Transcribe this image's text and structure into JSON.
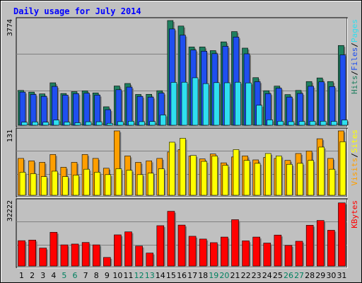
{
  "chart_data": {
    "type": "bar",
    "title": "Daily usage for July 2014",
    "categories": [
      "1",
      "2",
      "3",
      "4",
      "5",
      "6",
      "7",
      "8",
      "9",
      "10",
      "11",
      "12",
      "13",
      "14",
      "15",
      "16",
      "17",
      "18",
      "19",
      "20",
      "21",
      "22",
      "23",
      "24",
      "25",
      "26",
      "27",
      "28",
      "29",
      "30",
      "31"
    ],
    "weekend_days": [
      "5",
      "6",
      "12",
      "13",
      "19",
      "20",
      "26",
      "27"
    ],
    "panels": [
      {
        "id": "hits",
        "ymax_label": "3774",
        "ylim": [
          0,
          3774
        ],
        "legend": [
          "Hits",
          "/",
          "Files",
          "/",
          "Pages"
        ],
        "series": [
          {
            "name": "Hits",
            "color": "#1f7f5f",
            "values": [
              1255,
              1195,
              1130,
              1530,
              1145,
              1210,
              1240,
              1165,
              665,
              1415,
              1505,
              1110,
              1115,
              1245,
              3774,
              3575,
              2820,
              2820,
              2690,
              3005,
              3375,
              2780,
              1715,
              1245,
              1410,
              1105,
              1255,
              1575,
              1705,
              1575,
              2875
            ]
          },
          {
            "name": "Files",
            "color": "#1f4fef",
            "values": [
              1195,
              1110,
              1040,
              1400,
              1085,
              1140,
              1155,
              1085,
              560,
              1280,
              1375,
              1040,
              1015,
              1160,
              3470,
              3245,
              2710,
              2670,
              2580,
              2845,
              3180,
              2575,
              1570,
              1140,
              1335,
              1015,
              1145,
              1405,
              1565,
              1395,
              2535
            ]
          },
          {
            "name": "Pages",
            "color": "#2fdfef",
            "values": [
              110,
              120,
              110,
              190,
              115,
              90,
              125,
              125,
              70,
              130,
              145,
              130,
              135,
              370,
              1545,
              1550,
              1710,
              1500,
              1535,
              1530,
              1550,
              1525,
              720,
              195,
              145,
              130,
              140,
              145,
              145,
              140,
              190
            ]
          }
        ]
      },
      {
        "id": "visits",
        "ymax_label": "131",
        "ylim": [
          0,
          131
        ],
        "legend": [
          "Visits",
          "/",
          "Sites"
        ],
        "series": [
          {
            "name": "Visits",
            "color": "#ff9f00",
            "values": [
              75,
              70,
              67,
              83,
              57,
              67,
              83,
              75,
              55,
              131,
              80,
              67,
              70,
              75,
              88,
              93,
              80,
              74,
              84,
              66,
              78,
              80,
              72,
              77,
              75,
              71,
              85,
              90,
              115,
              75,
              131
            ]
          },
          {
            "name": "Sites",
            "color": "#ffff00",
            "values": [
              47,
              44,
              38,
              49,
              38,
              41,
              53,
              47,
              42,
              54,
              51,
              42,
              45,
              54,
              108,
              116,
              81,
              69,
              80,
              61,
              93,
              71,
              65,
              85,
              80,
              63,
              65,
              71,
              98,
              53,
              109
            ]
          }
        ]
      },
      {
        "id": "kbytes",
        "ymax_label": "32222",
        "ylim": [
          0,
          32222
        ],
        "legend": [
          "KBytes"
        ],
        "series": [
          {
            "name": "KBytes",
            "color": "#ff0000",
            "values": [
              12700,
              13000,
              9000,
              16900,
              10600,
              11000,
              11800,
              10600,
              4300,
              15600,
              17100,
              10000,
              6500,
              20200,
              27400,
              20500,
              14900,
              13500,
              11700,
              14500,
              23200,
              12600,
              14500,
              11500,
              15500,
              10300,
              12400,
              20400,
              22800,
              17900,
              31600
            ]
          }
        ]
      }
    ]
  }
}
